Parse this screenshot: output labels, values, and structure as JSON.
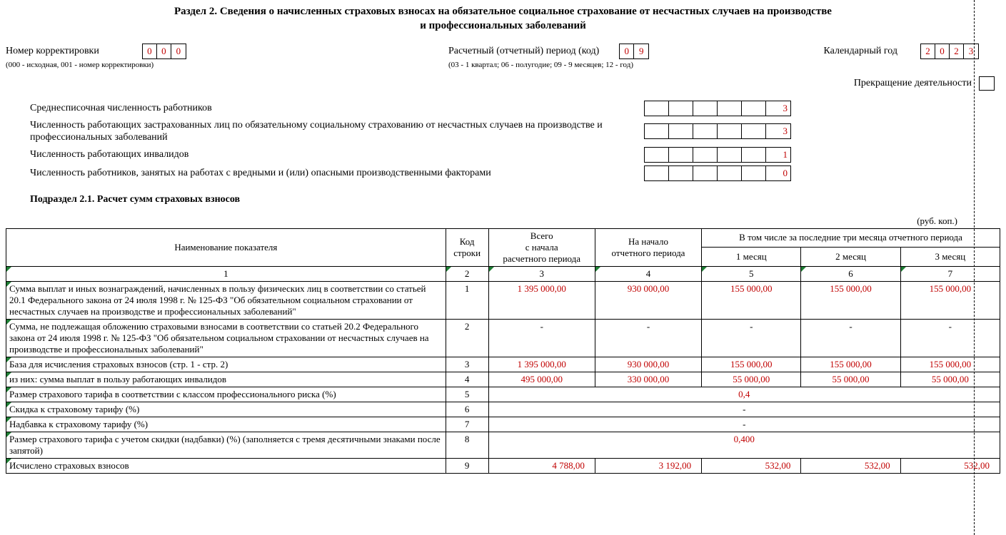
{
  "title_line1": "Раздел 2. Сведения о начисленных страховых взносах на обязательное социальное страхование от несчастных случаев на производстве",
  "title_line2": "и профессиональных заболеваний",
  "correction": {
    "label": "Номер корректировки",
    "digits": [
      "0",
      "0",
      "0"
    ],
    "hint": "(000 - исходная, 001 - номер корректировки)"
  },
  "period": {
    "label": "Расчетный (отчетный) период (код)",
    "digits": [
      "0",
      "9"
    ],
    "hint": "(03 - 1 квартал; 06 - полугодие; 09 - 9 месяцев; 12 - год)"
  },
  "year": {
    "label": "Календарный год",
    "digits": [
      "2",
      "0",
      "2",
      "3"
    ]
  },
  "termination_label": "Прекращение деятельности",
  "counts": [
    {
      "text": "Среднесписочная численность работников",
      "cells": [
        "",
        "",
        "",
        "",
        "",
        "3"
      ]
    },
    {
      "text": "Численность работающих застрахованных лиц по обязательному социальному страхованию от несчастных случаев на производстве и профессиональных заболеваний",
      "cells": [
        "",
        "",
        "",
        "",
        "",
        "3"
      ]
    },
    {
      "text": "Численность работающих инвалидов",
      "cells": [
        "",
        "",
        "",
        "",
        "",
        "1"
      ]
    },
    {
      "text": "Численность работников, занятых на работах с вредными и (или) опасными производственными факторами",
      "cells": [
        "",
        "",
        "",
        "",
        "",
        "0"
      ]
    }
  ],
  "subsection_title": "Подраздел 2.1. Расчет сумм страховых взносов",
  "units_label": "(руб. коп.)",
  "columns": {
    "c1": "Наименование показателя",
    "c2": "Код\nстроки",
    "c3": "Всего\nс начала\nрасчетного периода",
    "c4": "На начало\nотчетного периода",
    "c5_group": "В том числе за последние три месяца отчетного периода",
    "c5": "1 месяц",
    "c6": "2 месяц",
    "c7": "3 месяц"
  },
  "numheader": [
    "1",
    "2",
    "3",
    "4",
    "5",
    "6",
    "7"
  ],
  "rows": [
    {
      "name": "Сумма выплат и иных вознаграждений, начисленных в пользу физических лиц в соответствии со статьей 20.1 Федерального закона от 24 июля 1998 г. № 125-ФЗ \"Об обязательном социальном страховании от несчастных случаев на производстве и профессиональных заболеваний\"",
      "code": "1",
      "v": [
        "1 395 000,00",
        "930 000,00",
        "155 000,00",
        "155 000,00",
        "155 000,00"
      ],
      "merged": null
    },
    {
      "name": "Сумма, не подлежащая обложению страховыми взносами в соответствии со статьей 20.2 Федерального закона от 24 июля 1998 г. № 125-ФЗ \"Об обязательном социальном страховании от несчастных случаев на производстве и профессиональных заболеваний\"",
      "code": "2",
      "v": [
        "-",
        "-",
        "-",
        "-",
        "-"
      ],
      "merged": null
    },
    {
      "name": "База для исчисления страховых взносов (стр. 1 - стр. 2)",
      "code": "3",
      "v": [
        "1 395 000,00",
        "930 000,00",
        "155 000,00",
        "155 000,00",
        "155 000,00"
      ],
      "merged": null
    },
    {
      "name": "из них: сумма выплат в пользу работающих инвалидов",
      "code": "4",
      "v": [
        "495 000,00",
        "330 000,00",
        "55 000,00",
        "55 000,00",
        "55 000,00"
      ],
      "merged": null
    },
    {
      "name": "Размер страхового тарифа в соответствии с классом профессионального риска (%)",
      "code": "5",
      "v": null,
      "merged": "0,4"
    },
    {
      "name": "Скидка к страховому тарифу (%)",
      "code": "6",
      "v": null,
      "merged": "-"
    },
    {
      "name": "Надбавка к страховому тарифу (%)",
      "code": "7",
      "v": null,
      "merged": "-"
    },
    {
      "name": "Размер страхового тарифа с учетом скидки (надбавки) (%) (заполняется с тремя десятичными знаками после запятой)",
      "code": "8",
      "v": null,
      "merged": "0,400"
    },
    {
      "name": "Исчислено страховых взносов",
      "code": "9",
      "v": [
        "4 788,00",
        "3 192,00",
        "532,00",
        "532,00",
        "532,00"
      ],
      "merged": null
    }
  ]
}
